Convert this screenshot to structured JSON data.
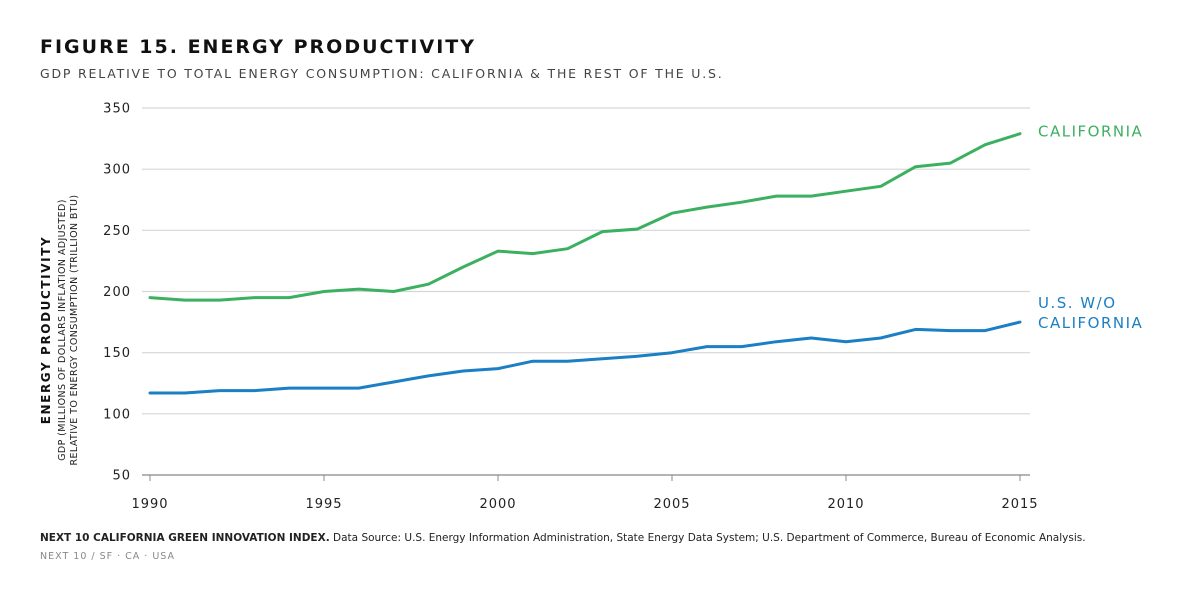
{
  "title": "FIGURE 15. ENERGY PRODUCTIVITY",
  "subtitle": "GDP RELATIVE TO TOTAL ENERGY CONSUMPTION: CALIFORNIA & THE REST OF THE U.S.",
  "source_org": "NEXT 10 CALIFORNIA GREEN INNOVATION INDEX.",
  "source_text": "Data Source: U.S. Energy Information Administration, State Energy Data System; U.S. Department of Commerce, Bureau of Economic Analysis.",
  "footer": "NEXT 10  /  SF · CA · USA",
  "chart_data": {
    "type": "line",
    "ylabel_line1": "ENERGY PRODUCTIVITY",
    "ylabel_line2": "GDP (MILLIONS OF DOLLARS INFLATION ADJUSTED)",
    "ylabel_line3": "RELATIVE TO ENERGY CONSUMPTION (TRILLION BTU)",
    "xlim": [
      1990,
      2015
    ],
    "ylim": [
      50,
      350
    ],
    "xticks": [
      1990,
      1995,
      2000,
      2005,
      2010,
      2015
    ],
    "yticks": [
      50,
      100,
      150,
      200,
      250,
      300,
      350
    ],
    "grid": true,
    "x": [
      1990,
      1991,
      1992,
      1993,
      1994,
      1995,
      1996,
      1997,
      1998,
      1999,
      2000,
      2001,
      2002,
      2003,
      2004,
      2005,
      2006,
      2007,
      2008,
      2009,
      2010,
      2011,
      2012,
      2013,
      2014,
      2015
    ],
    "series": [
      {
        "name": "CALIFORNIA",
        "label_lines": [
          "CALIFORNIA"
        ],
        "color": "#3bb060",
        "values": [
          195,
          193,
          193,
          195,
          195,
          200,
          202,
          200,
          206,
          220,
          233,
          231,
          235,
          249,
          251,
          264,
          269,
          273,
          278,
          278,
          282,
          286,
          302,
          305,
          320,
          329
        ]
      },
      {
        "name": "U.S. W/O CALIFORNIA",
        "label_lines": [
          "U.S. W/O",
          "CALIFORNIA"
        ],
        "color": "#1a7fc4",
        "values": [
          117,
          117,
          119,
          119,
          121,
          121,
          121,
          126,
          131,
          135,
          137,
          143,
          143,
          145,
          147,
          150,
          155,
          155,
          159,
          162,
          159,
          162,
          169,
          168,
          168,
          175
        ]
      }
    ]
  }
}
